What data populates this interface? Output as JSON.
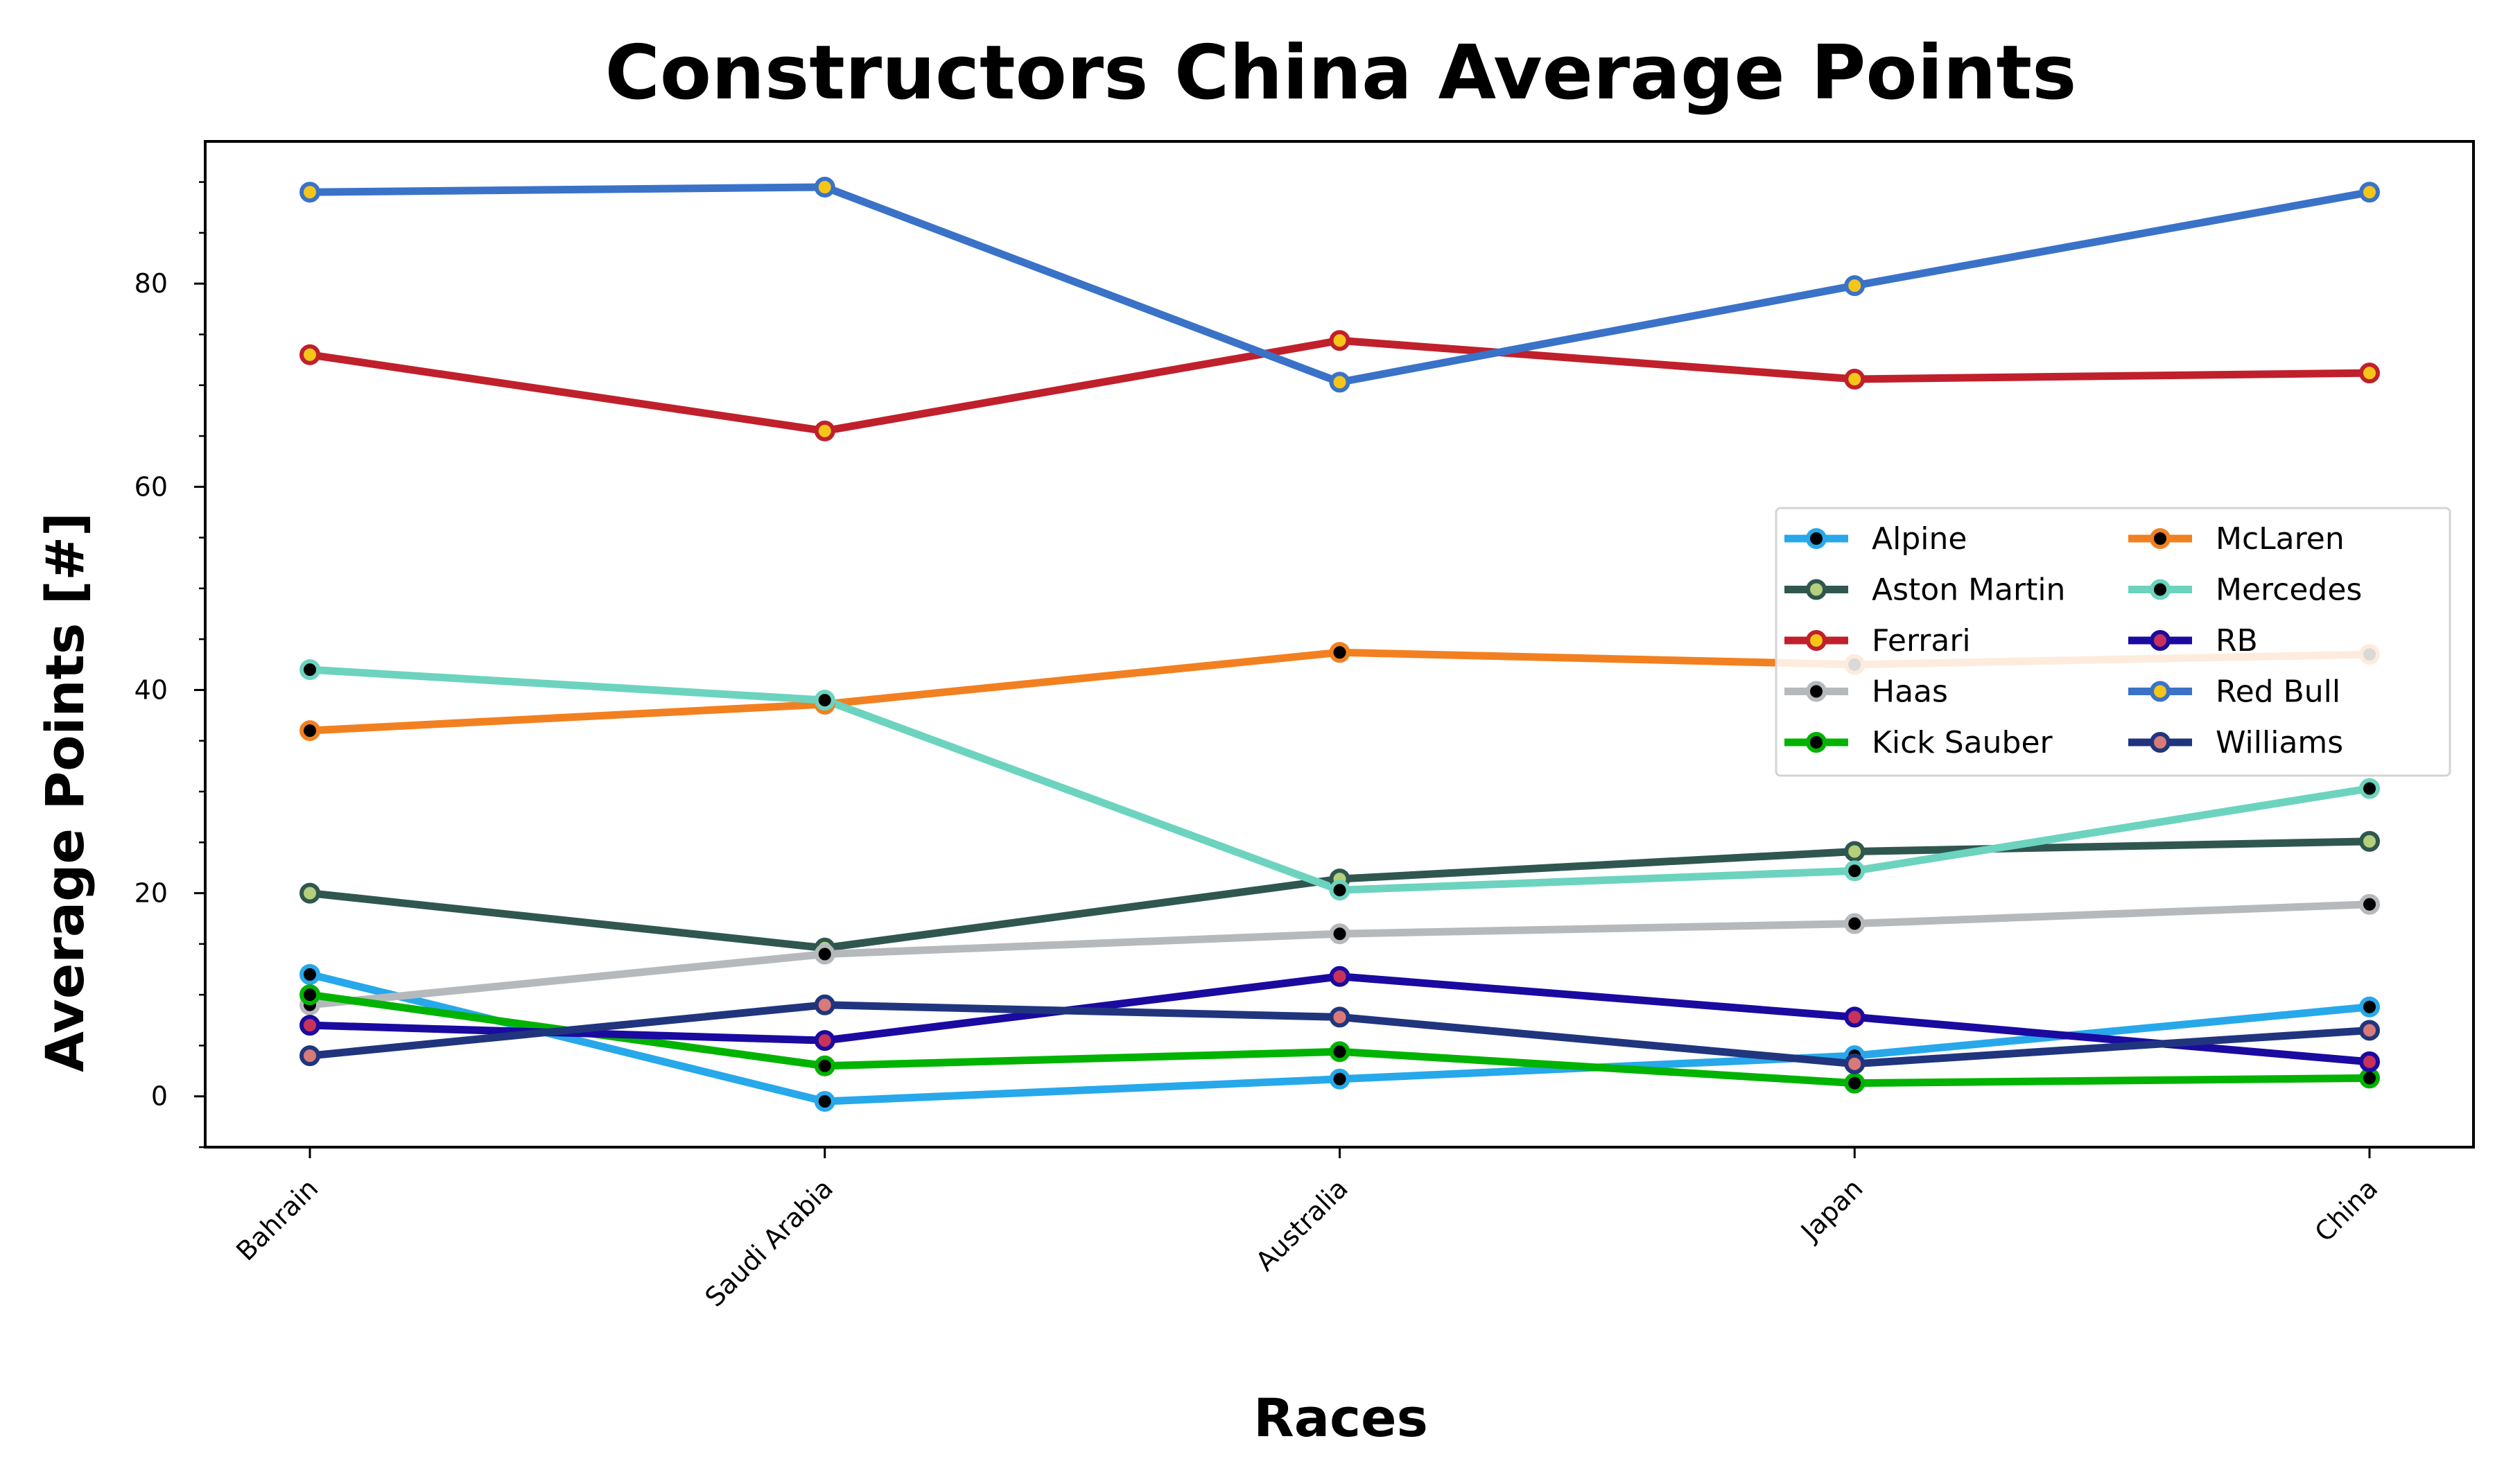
{
  "chart_data": {
    "type": "line",
    "title": "Constructors China Average Points",
    "xlabel": "Races",
    "ylabel": "Average Points [#]",
    "categories": [
      "Bahrain",
      "Saudi Arabia",
      "Australia",
      "Japan",
      "China"
    ],
    "ylim": [
      -5,
      94
    ],
    "yticks": [
      0,
      20,
      40,
      60,
      80
    ],
    "grid": false,
    "legend": {
      "placement": "center-right",
      "columns": 2
    },
    "series": [
      {
        "name": "Alpine",
        "color": "#27a8ea",
        "marker": "#000000",
        "values": [
          12.0,
          -0.5,
          1.7,
          4.0,
          8.8
        ]
      },
      {
        "name": "Aston Martin",
        "color": "#2f5750",
        "marker": "#b5cf7a",
        "values": [
          20.0,
          14.6,
          21.4,
          24.1,
          25.1
        ]
      },
      {
        "name": "Ferrari",
        "color": "#c0202b",
        "marker": "#f5c518",
        "values": [
          73.0,
          65.5,
          74.4,
          70.6,
          71.2
        ]
      },
      {
        "name": "Haas",
        "color": "#b6b9bc",
        "marker": "#000000",
        "values": [
          9.0,
          14.0,
          16.0,
          17.0,
          18.9
        ]
      },
      {
        "name": "Kick Sauber",
        "color": "#00b300",
        "marker": "#000000",
        "values": [
          10.0,
          3.0,
          4.4,
          1.3,
          1.8
        ]
      },
      {
        "name": "McLaren",
        "color": "#f28020",
        "marker": "#000000",
        "values": [
          36.0,
          38.6,
          43.7,
          42.5,
          43.5
        ]
      },
      {
        "name": "Mercedes",
        "color": "#6cd3bf",
        "marker": "#000000",
        "values": [
          42.0,
          39.0,
          20.3,
          22.2,
          30.3
        ]
      },
      {
        "name": "RB",
        "color": "#1a0aa0",
        "marker": "#c8325a",
        "values": [
          7.0,
          5.5,
          11.8,
          7.8,
          3.4
        ]
      },
      {
        "name": "Red Bull",
        "color": "#3a72c8",
        "marker": "#f5c518",
        "values": [
          89.0,
          89.5,
          70.3,
          79.8,
          89.0
        ]
      },
      {
        "name": "Williams",
        "color": "#20357e",
        "marker": "#d87a78",
        "values": [
          4.0,
          9.0,
          7.8,
          3.2,
          6.5
        ]
      }
    ]
  }
}
